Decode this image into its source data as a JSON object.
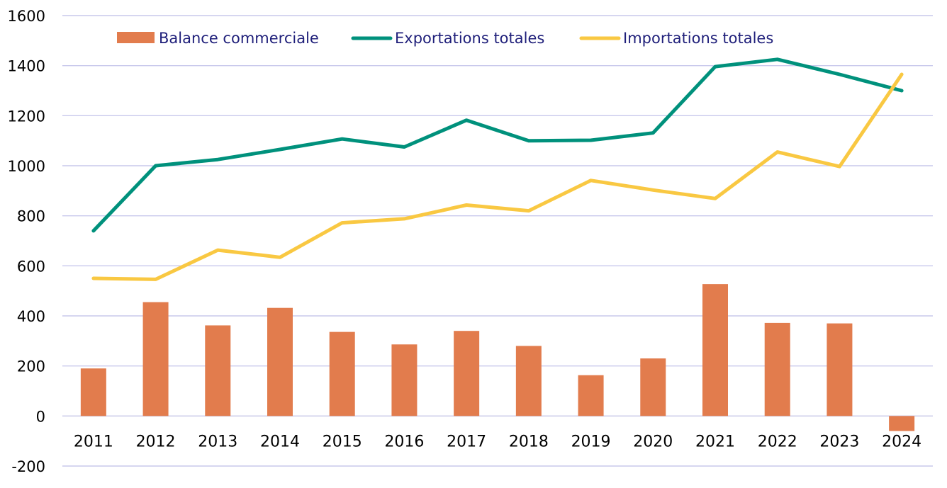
{
  "chart_data": {
    "type": "bar+line",
    "title": "",
    "xlabel": "",
    "ylabel": "",
    "ylim": [
      -200,
      1600
    ],
    "yticks": [
      -200,
      0,
      200,
      400,
      600,
      800,
      1000,
      1200,
      1400,
      1600
    ],
    "ytick_labels": [
      "-200",
      "0",
      "200",
      "400",
      "600",
      "800",
      "1000",
      "1200",
      "1400",
      "1600"
    ],
    "grid": true,
    "legend_position": "top",
    "categories": [
      "2011",
      "2012",
      "2013",
      "2014",
      "2015",
      "2016",
      "2017",
      "2018",
      "2019",
      "2020",
      "2021",
      "2022",
      "2023",
      "2024"
    ],
    "series": [
      {
        "name": "Balance commerciale",
        "kind": "bar",
        "color": "#E27C4D",
        "values": [
          190,
          455,
          362,
          432,
          336,
          286,
          340,
          280,
          163,
          230,
          527,
          372,
          370,
          -60
        ]
      },
      {
        "name": "Exportations totales",
        "kind": "line",
        "color": "#00917C",
        "values": [
          740,
          1000,
          1025,
          1065,
          1107,
          1075,
          1182,
          1100,
          1102,
          1131,
          1396,
          1425,
          1365,
          1300
        ]
      },
      {
        "name": "Importations totales",
        "kind": "line",
        "color": "#F9C842",
        "values": [
          550,
          546,
          663,
          634,
          772,
          788,
          843,
          820,
          941,
          903,
          869,
          1055,
          997,
          1365
        ]
      }
    ]
  }
}
